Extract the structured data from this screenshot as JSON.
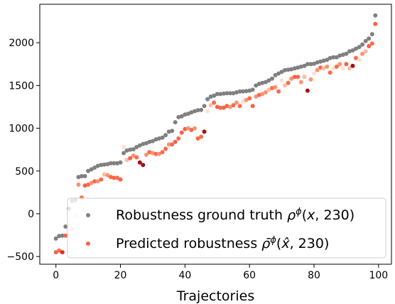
{
  "chart_data": {
    "type": "scatter",
    "title": "",
    "xlabel": "Trajectories",
    "ylabel": "",
    "xlim": [
      -5,
      104
    ],
    "ylim": [
      -590,
      2450
    ],
    "xticks": [
      0,
      20,
      40,
      60,
      80,
      100
    ],
    "yticks": [
      -500,
      0,
      500,
      1000,
      1500,
      2000
    ],
    "grid": false,
    "legend_position": "lower-right",
    "series": [
      {
        "name": "Robustness ground truth ρ^φ(x, 230)",
        "color": "#808080",
        "x": [
          0,
          1,
          2,
          3,
          4,
          5,
          6,
          7,
          8,
          9,
          10,
          11,
          12,
          13,
          14,
          15,
          16,
          17,
          18,
          19,
          20,
          21,
          22,
          23,
          24,
          25,
          26,
          27,
          28,
          29,
          30,
          31,
          32,
          33,
          34,
          35,
          36,
          37,
          38,
          39,
          40,
          41,
          42,
          43,
          44,
          45,
          46,
          47,
          48,
          49,
          50,
          51,
          52,
          53,
          54,
          55,
          56,
          57,
          58,
          59,
          60,
          61,
          62,
          63,
          64,
          65,
          66,
          67,
          68,
          69,
          70,
          71,
          72,
          73,
          74,
          75,
          76,
          77,
          78,
          79,
          80,
          81,
          82,
          83,
          84,
          85,
          86,
          87,
          88,
          89,
          90,
          91,
          92,
          93,
          94,
          95,
          96,
          97,
          98,
          99
        ],
        "y": [
          -290,
          -260,
          -255,
          -150,
          60,
          150,
          160,
          430,
          440,
          440,
          500,
          520,
          540,
          560,
          570,
          575,
          580,
          590,
          590,
          590,
          600,
          710,
          740,
          750,
          755,
          780,
          800,
          815,
          825,
          840,
          850,
          870,
          880,
          890,
          920,
          960,
          970,
          1070,
          1130,
          1140,
          1160,
          1170,
          1185,
          1200,
          1210,
          1215,
          1260,
          1340,
          1370,
          1380,
          1400,
          1400,
          1405,
          1410,
          1410,
          1410,
          1420,
          1430,
          1430,
          1435,
          1440,
          1450,
          1500,
          1520,
          1530,
          1540,
          1560,
          1580,
          1620,
          1640,
          1660,
          1680,
          1685,
          1690,
          1700,
          1710,
          1720,
          1730,
          1750,
          1750,
          1755,
          1770,
          1780,
          1790,
          1800,
          1820,
          1830,
          1830,
          1850,
          1860,
          1870,
          1900,
          1910,
          1930,
          1950,
          1980,
          2020,
          2050,
          2100,
          2320
        ]
      },
      {
        "name": "Predicted robustness ρ̄^φ(x̂, 230)",
        "color": "#f4624a",
        "x": [
          0,
          1,
          2,
          3,
          4,
          5,
          6,
          7,
          8,
          9,
          10,
          11,
          12,
          13,
          14,
          15,
          16,
          17,
          18,
          19,
          20,
          21,
          22,
          23,
          24,
          25,
          26,
          27,
          28,
          29,
          30,
          31,
          32,
          33,
          34,
          35,
          36,
          37,
          38,
          39,
          40,
          41,
          42,
          43,
          44,
          45,
          46,
          47,
          48,
          49,
          50,
          51,
          52,
          53,
          54,
          55,
          56,
          57,
          58,
          59,
          60,
          61,
          62,
          63,
          64,
          65,
          66,
          67,
          68,
          69,
          70,
          71,
          72,
          73,
          74,
          75,
          76,
          77,
          78,
          79,
          80,
          81,
          82,
          83,
          84,
          85,
          86,
          87,
          88,
          89,
          90,
          91,
          92,
          93,
          94,
          95,
          96,
          97,
          98,
          99
        ],
        "y": [
          -450,
          -430,
          -450,
          -255,
          -130,
          -180,
          -20,
          340,
          190,
          330,
          340,
          360,
          380,
          380,
          400,
          460,
          450,
          430,
          420,
          420,
          400,
          780,
          630,
          650,
          680,
          660,
          600,
          570,
          690,
          720,
          710,
          700,
          700,
          720,
          760,
          810,
          810,
          840,
          880,
          950,
          990,
          1000,
          980,
          1000,
          880,
          900,
          960,
          1200,
          1270,
          1300,
          1250,
          1240,
          1240,
          1260,
          1250,
          1270,
          1300,
          1260,
          1310,
          1330,
          1350,
          1260,
          1370,
          1390,
          1400,
          1420,
          1450,
          1470,
          1480,
          1430,
          1560,
          1500,
          1530,
          1580,
          1600,
          1600,
          1540,
          1600,
          1440,
          1570,
          1640,
          1680,
          1710,
          1700,
          1720,
          1650,
          1700,
          1720,
          1750,
          1700,
          1750,
          1700,
          1730,
          1820,
          1800,
          1870,
          1900,
          1960,
          1990,
          2220
        ],
        "colors": [
          "#f4624a",
          "#fb6a4a",
          "#de2d26",
          "#f4624a",
          "#fee0d2",
          "#fcbba1",
          "#fee0d2",
          "#fc9272",
          "#fb6a4a",
          "#f4624a",
          "#fb6a4a",
          "#fc9272",
          "#fb6a4a",
          "#fc9272",
          "#fb6a4a",
          "#fcbba1",
          "#fc9272",
          "#fb6a4a",
          "#f4624a",
          "#fb6a4a",
          "#f4624a",
          "#fee0d2",
          "#fcbba1",
          "#f4624a",
          "#fc9272",
          "#fb6a4a",
          "#a50f15",
          "#a50f15",
          "#fc9272",
          "#fb6a4a",
          "#fc9272",
          "#fb6a4a",
          "#fc9272",
          "#fb6a4a",
          "#fb6a4a",
          "#fc9272",
          "#fb6a4a",
          "#f4624a",
          "#fb6a4a",
          "#f4624a",
          "#f4624a",
          "#fc9272",
          "#fb6a4a",
          "#fc9272",
          "#fb6a4a",
          "#fb6a4a",
          "#a50f15",
          "#fee0d2",
          "#fcbba1",
          "#fb6a4a",
          "#f4624a",
          "#fb6a4a",
          "#f4624a",
          "#f4624a",
          "#fc9272",
          "#fb6a4a",
          "#fc9272",
          "#fb6a4a",
          "#fee0d2",
          "#fc9272",
          "#fb6a4a",
          "#f4624a",
          "#fc9272",
          "#fb6a4a",
          "#fc9272",
          "#fc9272",
          "#fcbba1",
          "#fb6a4a",
          "#fc9272",
          "#fb6a4a",
          "#fee0d2",
          "#fcbba1",
          "#fb6a4a",
          "#fc9272",
          "#f4624a",
          "#fb6a4a",
          "#fc9272",
          "#fcbba1",
          "#a50f15",
          "#fc9272",
          "#fee0d2",
          "#fc9272",
          "#fb6a4a",
          "#fcbba1",
          "#fc9272",
          "#fb6a4a",
          "#fee0d2",
          "#fb6a4a",
          "#fc9272",
          "#fee0d2",
          "#f4624a",
          "#fcbba1",
          "#a50f15",
          "#fb6a4a",
          "#fee0d2",
          "#fc9272",
          "#fcbba1",
          "#f4624a",
          "#fb6a4a",
          "#f4624a"
        ]
      }
    ]
  }
}
